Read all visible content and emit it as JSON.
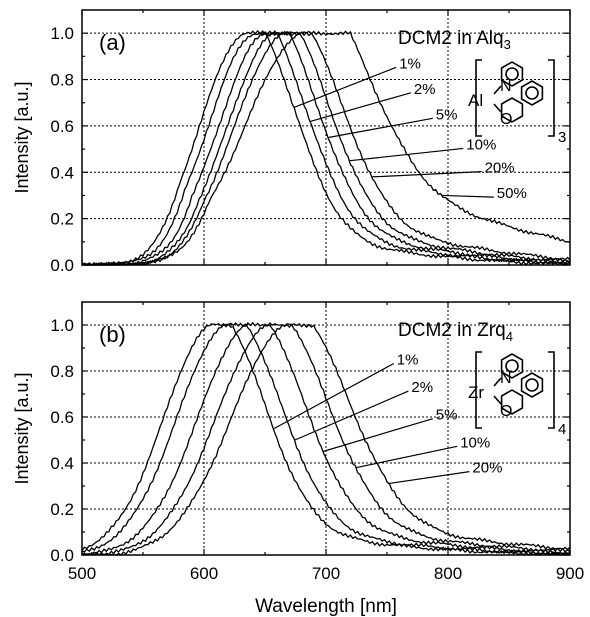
{
  "figure": {
    "xlabel": "Wavelength [nm]",
    "x_ticks": [
      "500",
      "600",
      "700",
      "800",
      "900"
    ],
    "colors": {
      "line": "#000000",
      "grid": "#000000",
      "background": "#ffffff"
    }
  },
  "chart_data": [
    {
      "type": "line",
      "panel_label": "(a)",
      "title": "DCM2 in Alq",
      "title_sub": "3",
      "ylabel": "Intensity [a.u.]",
      "y_ticks": [
        "0.0",
        "0.2",
        "0.4",
        "0.6",
        "0.8",
        "1.0"
      ],
      "xlim": [
        500,
        900
      ],
      "ylim": [
        0,
        1.1
      ],
      "grid": true,
      "inset": {
        "metal": "Al",
        "n_label": "N",
        "o_label": "O",
        "subscript": "3"
      },
      "series": [
        {
          "name": "1%",
          "peak": 635,
          "fwhm": 90,
          "tail": 0.08,
          "onset": 580,
          "label_value": 0.68,
          "label": [
            760,
            0.87
          ]
        },
        {
          "name": "2%",
          "peak": 643,
          "fwhm": 92,
          "tail": 0.09,
          "onset": 585,
          "label_value": 0.62,
          "label": [
            772,
            0.76
          ]
        },
        {
          "name": "5%",
          "peak": 652,
          "fwhm": 93,
          "tail": 0.1,
          "onset": 590,
          "label_value": 0.55,
          "label": [
            790,
            0.65
          ]
        },
        {
          "name": "10%",
          "peak": 660,
          "fwhm": 95,
          "tail": 0.11,
          "onset": 595,
          "label_value": 0.45,
          "label": [
            815,
            0.52
          ]
        },
        {
          "name": "20%",
          "peak": 668,
          "fwhm": 100,
          "tail": 0.12,
          "onset": 600,
          "label_value": 0.38,
          "label": [
            830,
            0.42
          ]
        },
        {
          "name": "50%",
          "peak": 683,
          "fwhm": 115,
          "tail": 0.25,
          "onset": 605,
          "label_value": 0.3,
          "label": [
            840,
            0.31
          ]
        }
      ]
    },
    {
      "type": "line",
      "panel_label": "(b)",
      "title": "DCM2 in Zrq",
      "title_sub": "4",
      "ylabel": "Intensity [a.u.]",
      "y_ticks": [
        "0.0",
        "0.2",
        "0.4",
        "0.6",
        "0.8",
        "1.0"
      ],
      "xlim": [
        500,
        900
      ],
      "ylim": [
        0,
        1.1
      ],
      "grid": true,
      "inset": {
        "metal": "Zr",
        "n_label": "N",
        "o_label": "O",
        "subscript": "4"
      },
      "series": [
        {
          "name": "1%",
          "peak": 608,
          "fwhm": 95,
          "tail": 0.07,
          "onset": 500,
          "label_value": 0.55,
          "label": [
            758,
            0.85
          ]
        },
        {
          "name": "2%",
          "peak": 620,
          "fwhm": 98,
          "tail": 0.07,
          "onset": 520,
          "label_value": 0.5,
          "label": [
            770,
            0.73
          ]
        },
        {
          "name": "5%",
          "peak": 638,
          "fwhm": 100,
          "tail": 0.08,
          "onset": 530,
          "label_value": 0.45,
          "label": [
            790,
            0.61
          ]
        },
        {
          "name": "10%",
          "peak": 655,
          "fwhm": 105,
          "tail": 0.08,
          "onset": 545,
          "label_value": 0.38,
          "label": [
            810,
            0.49
          ]
        },
        {
          "name": "20%",
          "peak": 670,
          "fwhm": 110,
          "tail": 0.09,
          "onset": 555,
          "label_value": 0.31,
          "label": [
            820,
            0.38
          ]
        }
      ]
    }
  ]
}
